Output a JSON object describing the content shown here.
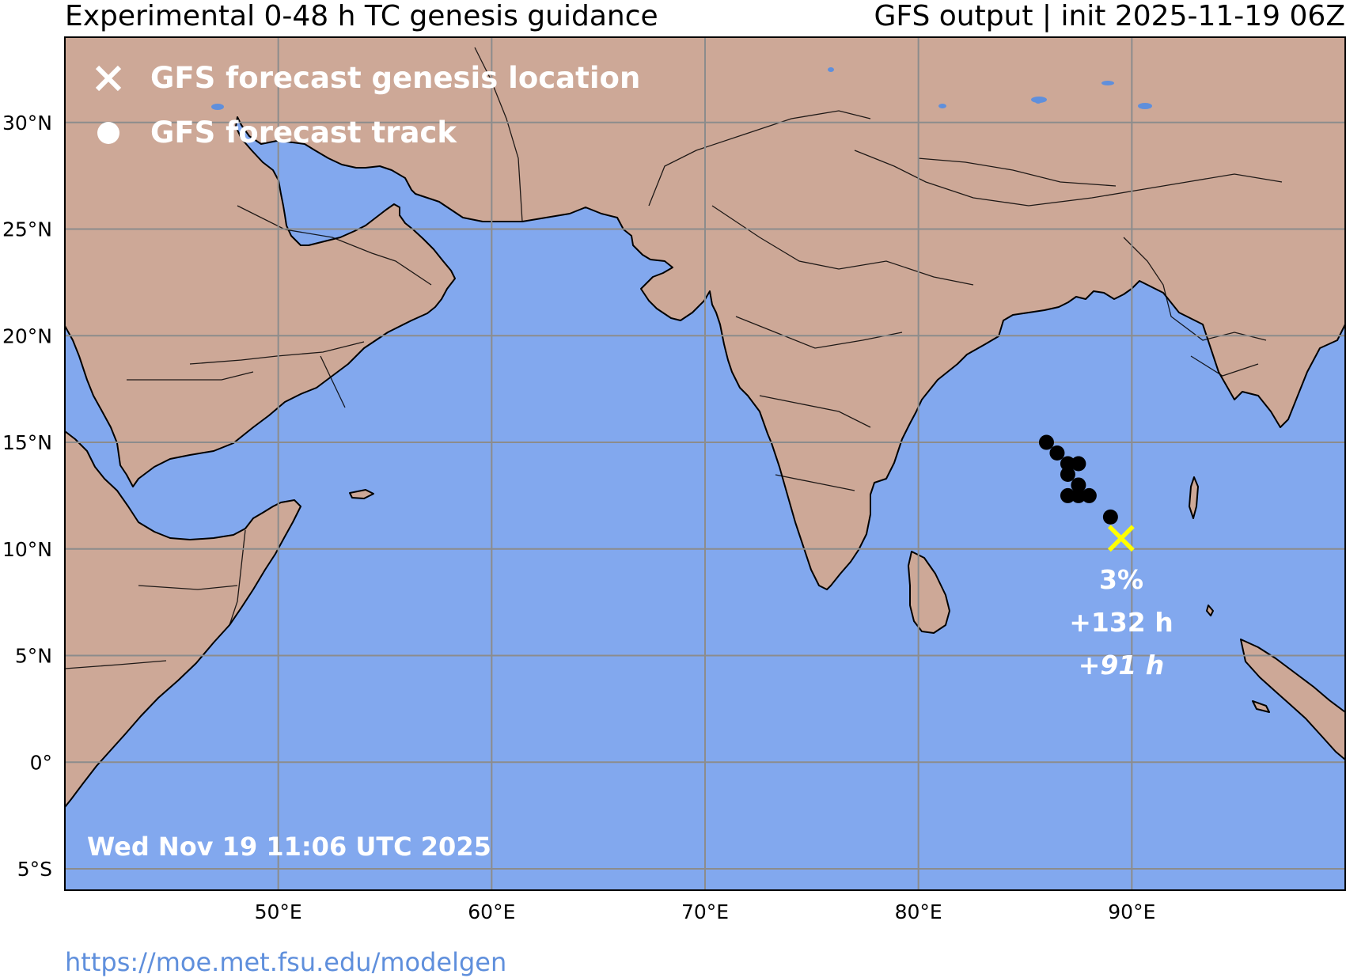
{
  "header": {
    "title": "Experimental 0-48 h TC genesis guidance",
    "model_info": "GFS output | init 2025-11-19 06Z"
  },
  "footer": {
    "url": "https://moe.met.fsu.edu/modelgen"
  },
  "map": {
    "region": "North Indian Ocean",
    "lon_range": [
      40,
      100
    ],
    "lat_range": [
      -6,
      34
    ],
    "colors": {
      "ocean": "#82a8ee",
      "land": "#cda897",
      "border": "#000000",
      "grid": "#8c8c8c",
      "track": "#000000",
      "genesis": "#ffff00",
      "lakes": "#5f8fdc"
    },
    "lat_ticks": [
      {
        "value": 30,
        "label": "30°N"
      },
      {
        "value": 25,
        "label": "25°N"
      },
      {
        "value": 20,
        "label": "20°N"
      },
      {
        "value": 15,
        "label": "15°N"
      },
      {
        "value": 10,
        "label": "10°N"
      },
      {
        "value": 5,
        "label": "5°N"
      },
      {
        "value": 0,
        "label": "0°"
      },
      {
        "value": -5,
        "label": "5°S"
      }
    ],
    "lon_ticks": [
      {
        "value": 50,
        "label": "50°E"
      },
      {
        "value": 60,
        "label": "60°E"
      },
      {
        "value": 70,
        "label": "70°E"
      },
      {
        "value": 80,
        "label": "80°E"
      },
      {
        "value": 90,
        "label": "90°E"
      }
    ],
    "legend": {
      "genesis_label": "GFS forecast genesis location",
      "track_label": "GFS forecast track",
      "genesis_icon": "x-marker-icon",
      "track_icon": "dot-marker-icon"
    },
    "genesis": {
      "lon": 89.5,
      "lat": 10.5
    },
    "annotation": {
      "probability": "3%",
      "lead_time": "+132 h",
      "lead_time_alt": "+91 h"
    },
    "track_points": [
      {
        "lon": 89.0,
        "lat": 11.5
      },
      {
        "lon": 88.0,
        "lat": 12.5
      },
      {
        "lon": 87.5,
        "lat": 12.5
      },
      {
        "lon": 87.0,
        "lat": 12.5
      },
      {
        "lon": 87.5,
        "lat": 13.0
      },
      {
        "lon": 87.0,
        "lat": 13.5
      },
      {
        "lon": 87.0,
        "lat": 14.0
      },
      {
        "lon": 87.5,
        "lat": 14.0
      },
      {
        "lon": 86.5,
        "lat": 14.5
      },
      {
        "lon": 86.0,
        "lat": 15.0
      }
    ],
    "timestamp": "Wed Nov 19 11:06 UTC 2025"
  }
}
